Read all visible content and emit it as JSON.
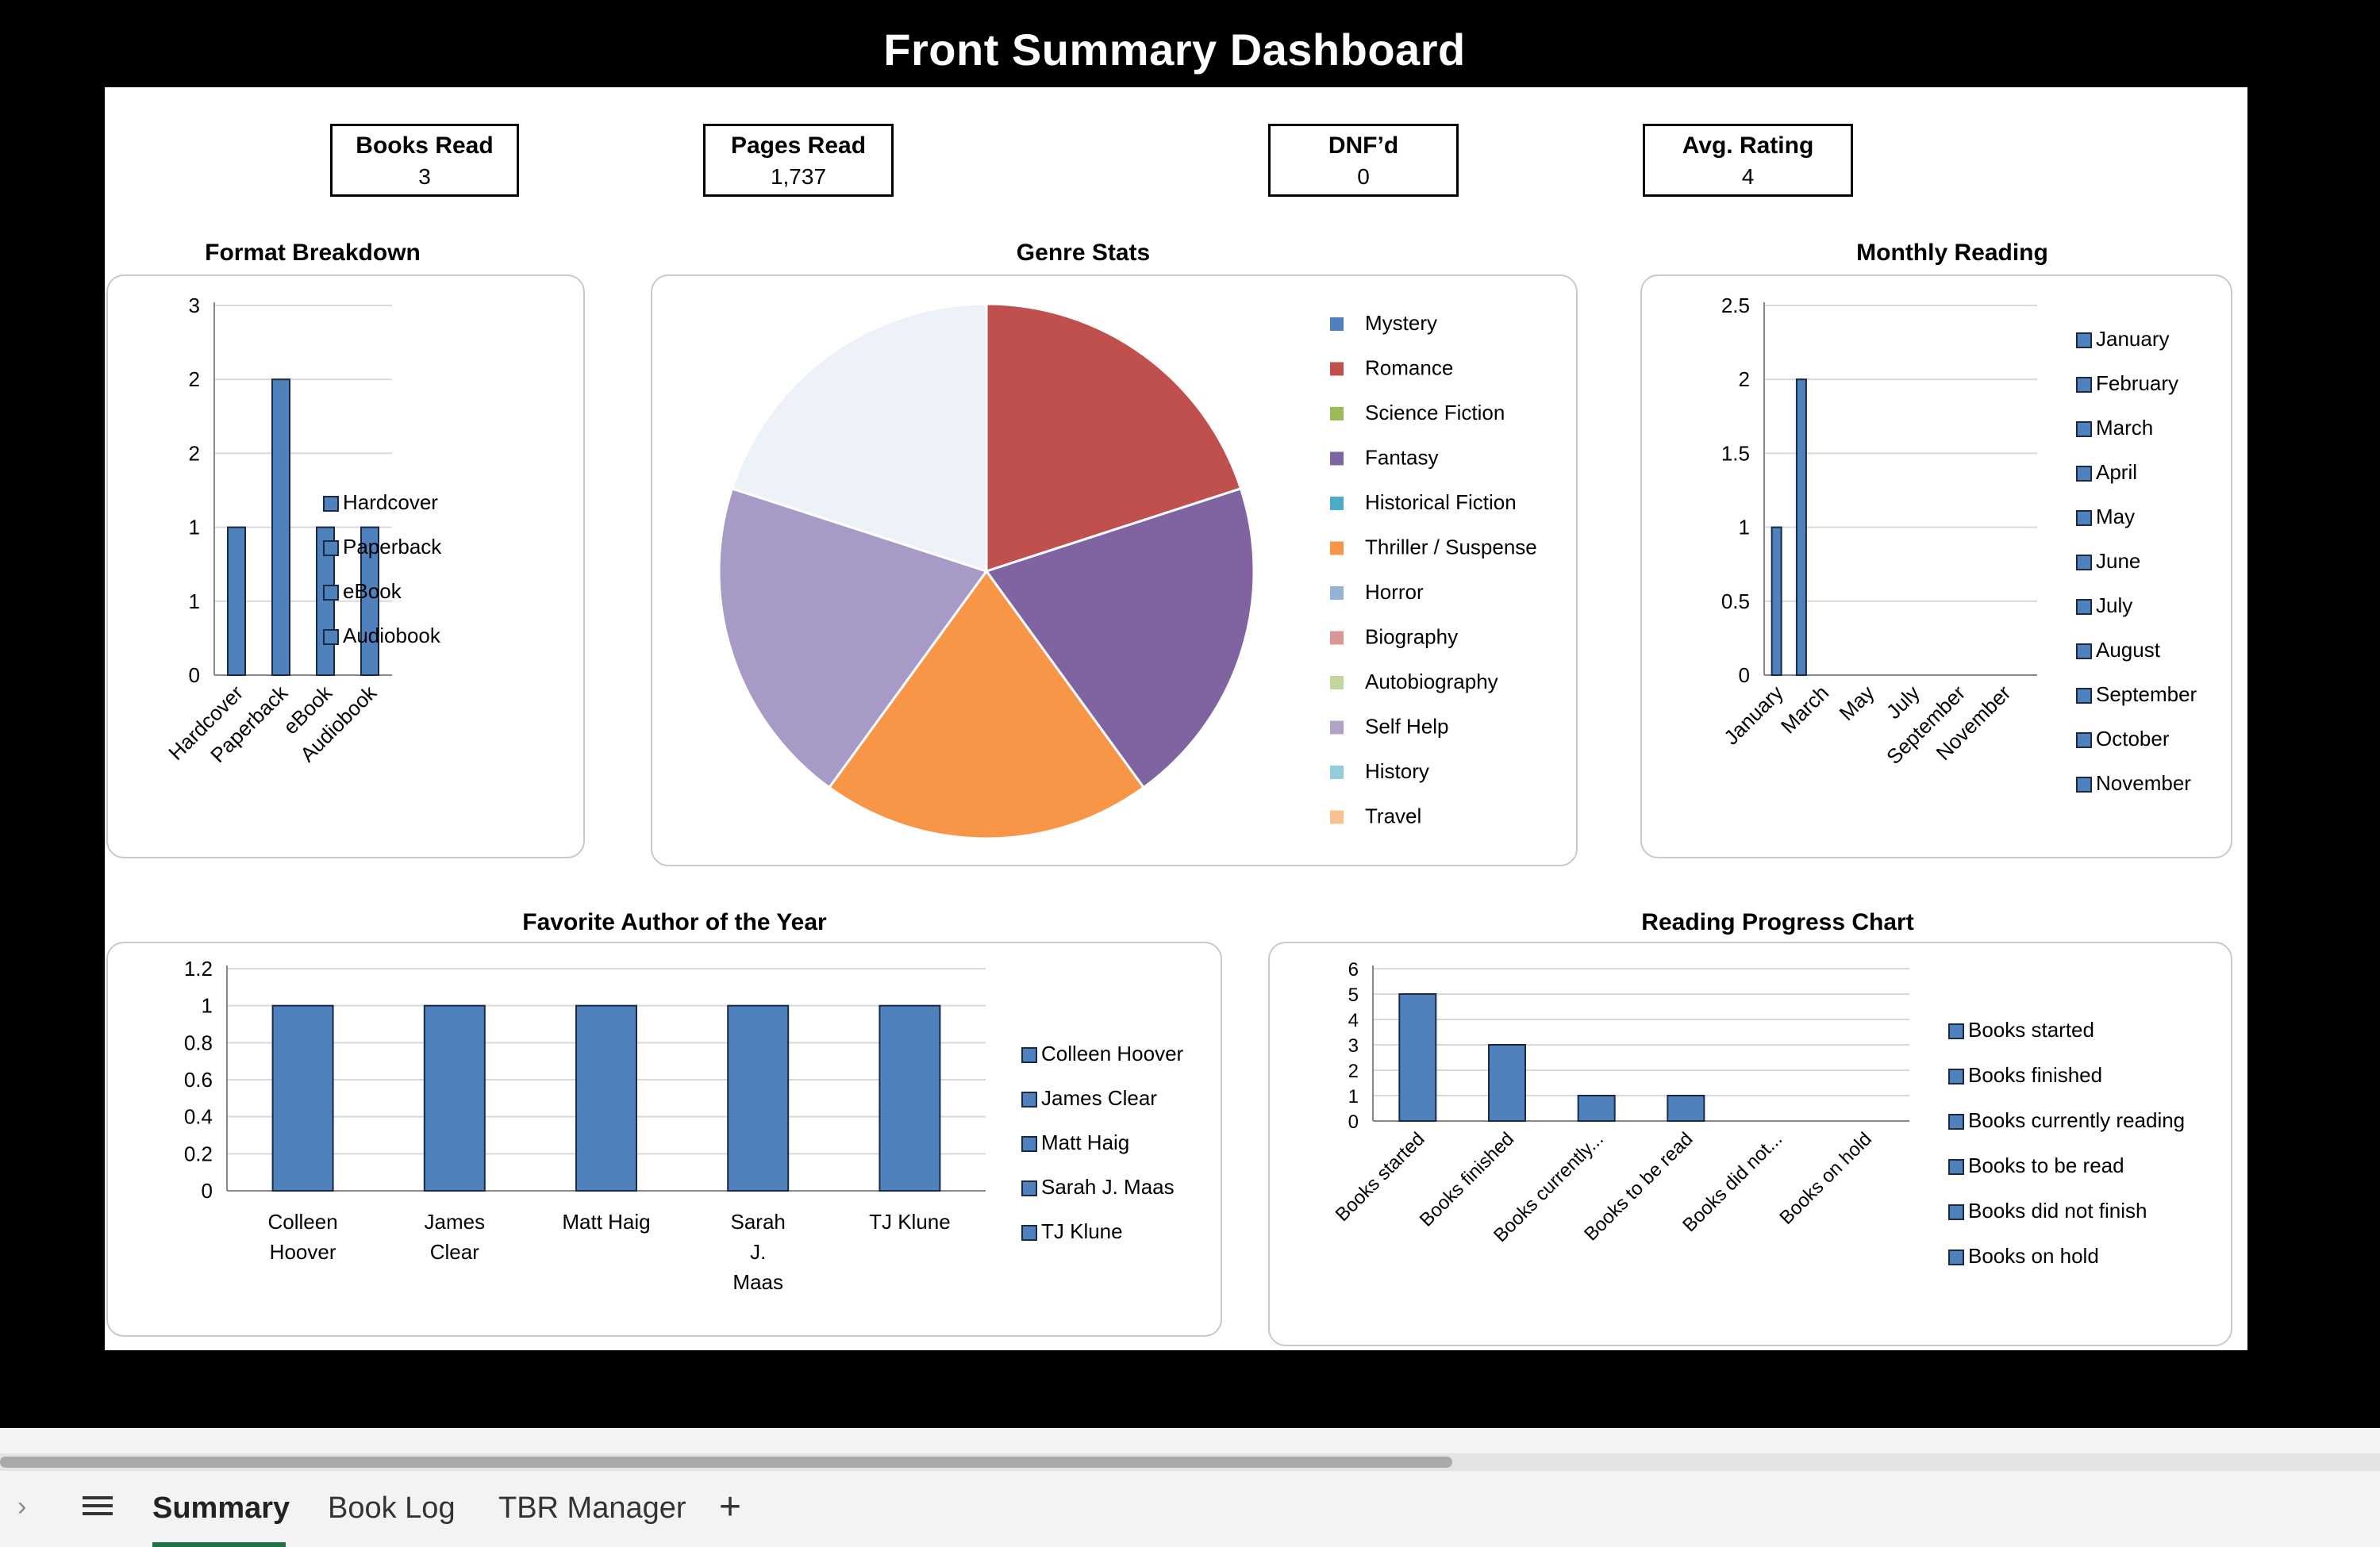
{
  "dashboard_title": "Front Summary Dashboard",
  "kpis": [
    {
      "label": "Books Read",
      "value": "3"
    },
    {
      "label": "Pages Read",
      "value": "1,737"
    },
    {
      "label": "DNF’d",
      "value": "0"
    },
    {
      "label": "Avg. Rating",
      "value": "4"
    }
  ],
  "section_titles": {
    "format": "Format Breakdown",
    "genre": "Genre Stats",
    "monthly": "Monthly Reading",
    "author": "Favorite Author of the Year",
    "progress": "Reading Progress Chart"
  },
  "colors": {
    "bar": "#4f81bd",
    "bar_border": "#1a2a45",
    "tab_accent": "#217346"
  },
  "tabs": {
    "active": "Summary",
    "items": [
      "Summary",
      "Book Log",
      "TBR Manager"
    ]
  },
  "chart_data": [
    {
      "id": "format",
      "type": "bar",
      "title": "Format Breakdown",
      "categories": [
        "Hardcover",
        "Paperback",
        "eBook",
        "Audiobook"
      ],
      "values": [
        1,
        2,
        1,
        1
      ],
      "yticks": [
        "0",
        "1",
        "1",
        "2",
        "2",
        "3"
      ],
      "ylim": [
        0,
        2.5
      ],
      "legend": [
        "Hardcover",
        "Paperback",
        "eBook",
        "Audiobook"
      ],
      "legend_position": "right"
    },
    {
      "id": "genre",
      "type": "pie",
      "title": "Genre Stats",
      "slices": [
        {
          "label": "Romance",
          "value": 1,
          "color": "#c0504d"
        },
        {
          "label": "Fantasy",
          "value": 1,
          "color": "#8064a2"
        },
        {
          "label": "Thriller / Suspense",
          "value": 1,
          "color": "#f79646"
        },
        {
          "label": "Self Help",
          "value": 1,
          "color": "#a89ac6"
        },
        {
          "label": "Travel",
          "value": 1,
          "color": "#edf1f8"
        }
      ],
      "legend": [
        {
          "label": "Mystery",
          "color": "#4f81bd"
        },
        {
          "label": "Romance",
          "color": "#c0504d"
        },
        {
          "label": "Science Fiction",
          "color": "#9bbb59"
        },
        {
          "label": "Fantasy",
          "color": "#8064a2"
        },
        {
          "label": "Historical Fiction",
          "color": "#4bacc6"
        },
        {
          "label": "Thriller / Suspense",
          "color": "#f79646"
        },
        {
          "label": "Horror",
          "color": "#95b3d7"
        },
        {
          "label": "Biography",
          "color": "#d99694"
        },
        {
          "label": "Autobiography",
          "color": "#c3d69b"
        },
        {
          "label": "Self Help",
          "color": "#b2a2c7"
        },
        {
          "label": "History",
          "color": "#92cddc"
        },
        {
          "label": "Travel",
          "color": "#fac08f"
        }
      ],
      "legend_position": "right"
    },
    {
      "id": "monthly",
      "type": "bar",
      "title": "Monthly Reading",
      "categories": [
        "January",
        "February",
        "March",
        "April",
        "May",
        "June",
        "July",
        "August",
        "September",
        "October",
        "November"
      ],
      "values": [
        1,
        2,
        0,
        0,
        0,
        0,
        0,
        0,
        0,
        0,
        0
      ],
      "x_tick_labels": [
        "January",
        "March",
        "May",
        "July",
        "September",
        "November"
      ],
      "yticks": [
        "0",
        "0.5",
        "1",
        "1.5",
        "2",
        "2.5"
      ],
      "ylim": [
        0,
        2.5
      ],
      "legend": [
        "January",
        "February",
        "March",
        "April",
        "May",
        "June",
        "July",
        "August",
        "September",
        "October",
        "November"
      ],
      "legend_position": "right"
    },
    {
      "id": "author",
      "type": "bar",
      "title": "Favorite Author of the Year",
      "categories": [
        "Colleen Hoover",
        "James Clear",
        "Matt Haig",
        "Sarah J. Maas",
        "TJ Klune"
      ],
      "values": [
        1,
        1,
        1,
        1,
        1
      ],
      "yticks": [
        "0",
        "0.2",
        "0.4",
        "0.6",
        "0.8",
        "1",
        "1.2"
      ],
      "ylim": [
        0,
        1.2
      ],
      "legend": [
        "Colleen Hoover",
        "James Clear",
        "Matt Haig",
        "Sarah J. Maas",
        "TJ Klune"
      ],
      "legend_position": "right"
    },
    {
      "id": "progress",
      "type": "bar",
      "title": "Reading Progress Chart",
      "categories": [
        "Books started",
        "Books finished",
        "Books currently reading",
        "Books to be read",
        "Books did not finish",
        "Books on hold"
      ],
      "x_tick_labels": [
        "Books started",
        "Books finished",
        "Books currently...",
        "Books to be read",
        "Books did not...",
        "Books on hold"
      ],
      "values": [
        5,
        3,
        1,
        1,
        0,
        0
      ],
      "yticks": [
        "0",
        "1",
        "2",
        "3",
        "4",
        "5",
        "6"
      ],
      "ylim": [
        0,
        6
      ],
      "legend": [
        "Books started",
        "Books finished",
        "Books currently reading",
        "Books to be read",
        "Books did not finish",
        "Books on hold"
      ],
      "legend_position": "right"
    }
  ]
}
